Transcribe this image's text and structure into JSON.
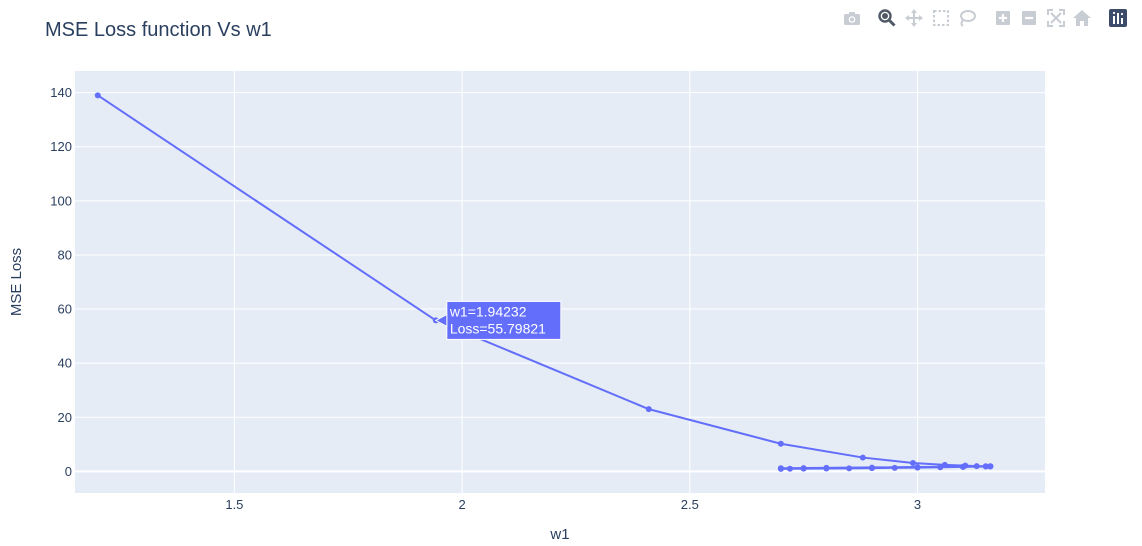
{
  "chart_data": {
    "type": "line",
    "title": "MSE Loss function Vs w1",
    "xlabel": "w1",
    "ylabel": "MSE Loss",
    "xlim": [
      1.15,
      3.28
    ],
    "ylim": [
      -8,
      148
    ],
    "x_ticks": [
      1.5,
      2,
      2.5,
      3
    ],
    "x_tick_labels": [
      "1.5",
      "2",
      "2.5",
      "3"
    ],
    "y_ticks": [
      0,
      20,
      40,
      60,
      80,
      100,
      120,
      140
    ],
    "y_tick_labels": [
      "0",
      "20",
      "40",
      "60",
      "80",
      "100",
      "120",
      "140"
    ],
    "grid": true,
    "plot_bgcolor": "#e5ecf6",
    "series": [
      {
        "color": "#636efa",
        "x": [
          1.2,
          1.94232,
          2.41,
          2.7,
          2.88,
          2.99,
          3.06,
          3.105,
          3.13,
          3.15,
          3.16,
          2.7,
          2.72,
          2.75,
          2.8,
          2.85,
          2.9,
          2.95,
          3.0,
          3.05,
          3.1,
          3.15,
          3.16,
          2.7,
          2.75,
          2.8,
          2.9,
          3.0,
          3.1,
          3.16
        ],
        "y": [
          139,
          55.79821,
          23,
          10.2,
          5.1,
          3.1,
          2.4,
          2.1,
          1.95,
          1.9,
          1.85,
          0.9,
          0.95,
          1.0,
          1.05,
          1.1,
          1.2,
          1.3,
          1.4,
          1.5,
          1.65,
          1.8,
          1.85,
          1.15,
          1.2,
          1.3,
          1.4,
          1.55,
          1.7,
          1.9
        ]
      }
    ],
    "hover": {
      "text_line1": "w1=1.94232",
      "text_line2": "Loss=55.79821",
      "x": 1.94232,
      "y": 55.79821
    }
  },
  "modebar": {
    "buttons": [
      "camera-icon",
      "zoom-icon",
      "pan-icon",
      "box-select-icon",
      "lasso-select-icon",
      "zoom-in-icon",
      "zoom-out-icon",
      "autoscale-icon",
      "reset-axes-icon",
      "plotly-logo-icon"
    ]
  }
}
